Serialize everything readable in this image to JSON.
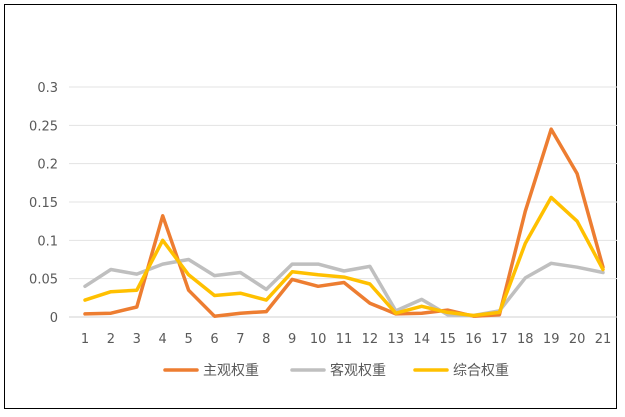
{
  "chart_data": {
    "type": "line",
    "title": "",
    "xlabel": "",
    "ylabel": "",
    "ylim": [
      0,
      0.3
    ],
    "yticks": [
      0,
      0.05,
      0.1,
      0.15,
      0.2,
      0.25,
      0.3
    ],
    "ytick_labels": [
      "0",
      "0.05",
      "0.1",
      "0.15",
      "0.2",
      "0.25",
      "0.3"
    ],
    "grid": true,
    "legend": "bottom",
    "x": [
      1,
      2,
      3,
      4,
      5,
      6,
      7,
      8,
      9,
      10,
      11,
      12,
      13,
      14,
      15,
      16,
      17,
      18,
      19,
      20,
      21
    ],
    "x_labels": [
      "1",
      "2",
      "3",
      "4",
      "5",
      "6",
      "7",
      "8",
      "9",
      "10",
      "11",
      "12",
      "13",
      "14",
      "15",
      "16",
      "17",
      "18",
      "19",
      "20",
      "21"
    ],
    "series": [
      {
        "name": "主观权重",
        "color": "#ED7D31",
        "values": [
          0.004,
          0.005,
          0.013,
          0.132,
          0.035,
          0.001,
          0.005,
          0.007,
          0.049,
          0.04,
          0.045,
          0.018,
          0.004,
          0.005,
          0.009,
          0.001,
          0.003,
          0.138,
          0.245,
          0.187,
          0.065
        ]
      },
      {
        "name": "客观权重",
        "color": "#BFBFBF",
        "values": [
          0.04,
          0.062,
          0.056,
          0.069,
          0.075,
          0.054,
          0.058,
          0.036,
          0.069,
          0.069,
          0.06,
          0.066,
          0.008,
          0.023,
          0.003,
          0.002,
          0.008,
          0.051,
          0.07,
          0.065,
          0.058
        ]
      },
      {
        "name": "综合权重",
        "color": "#FFC000",
        "values": [
          0.022,
          0.033,
          0.035,
          0.1,
          0.055,
          0.028,
          0.031,
          0.022,
          0.059,
          0.055,
          0.052,
          0.043,
          0.005,
          0.014,
          0.006,
          0.002,
          0.006,
          0.096,
          0.156,
          0.125,
          0.062
        ]
      }
    ]
  }
}
